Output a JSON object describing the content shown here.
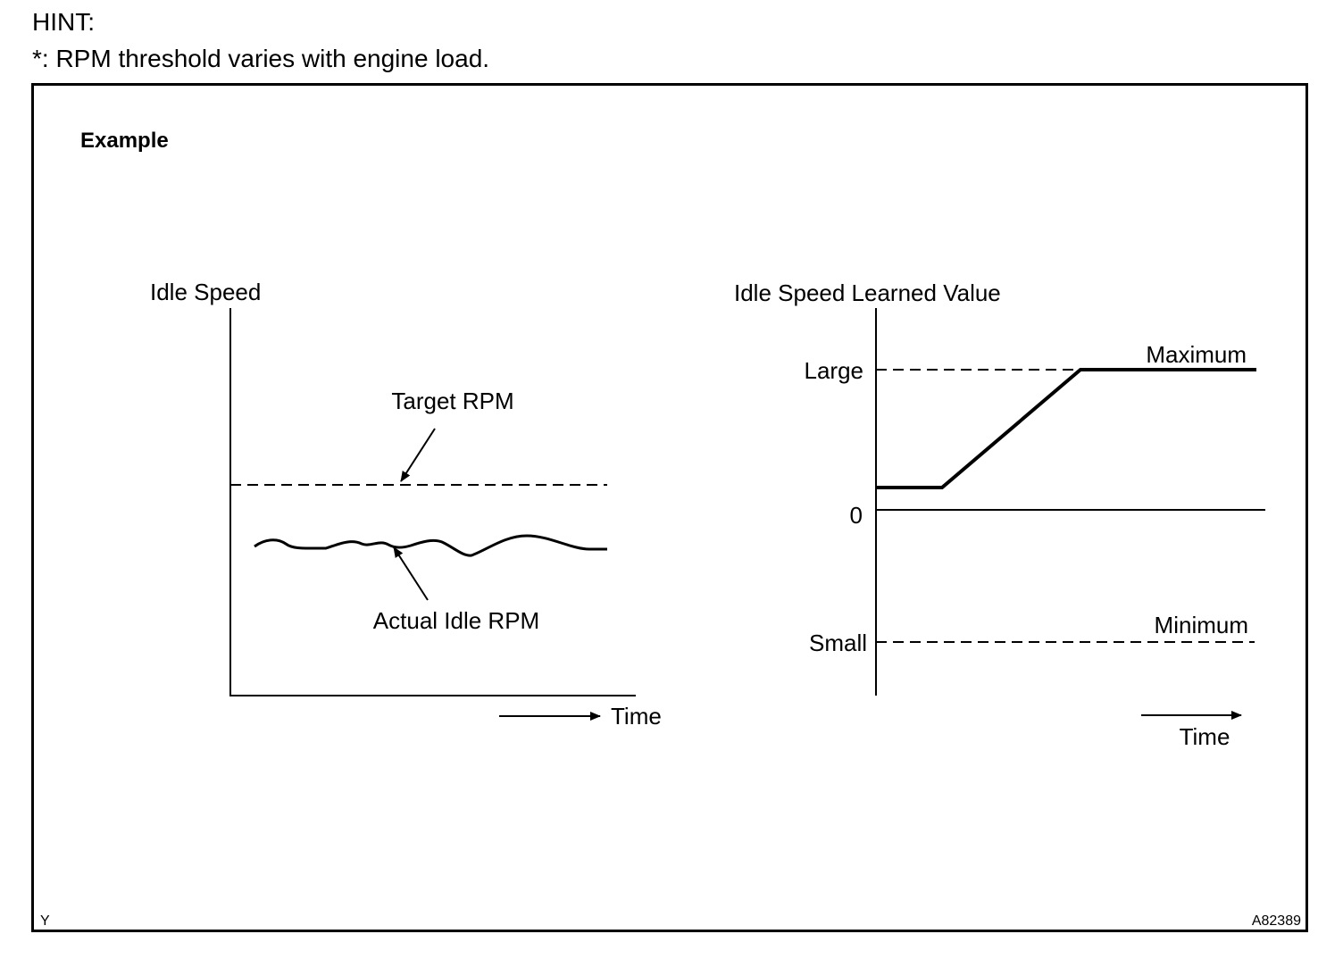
{
  "hint": {
    "title": "HINT:",
    "note": "*: RPM threshold varies with engine load."
  },
  "figure": {
    "heading": "Example",
    "corner_left": "Y",
    "corner_right": "A82389"
  },
  "left_graph": {
    "y_label": "Idle Speed",
    "x_label": "Time",
    "target_label": "Target RPM",
    "actual_label": "Actual Idle RPM"
  },
  "right_graph": {
    "y_label": "Idle Speed Learned Value",
    "x_label": "Time",
    "tick_large": "Large",
    "tick_zero": "0",
    "tick_small": "Small",
    "max_label": "Maximum",
    "min_label": "Minimum"
  }
}
